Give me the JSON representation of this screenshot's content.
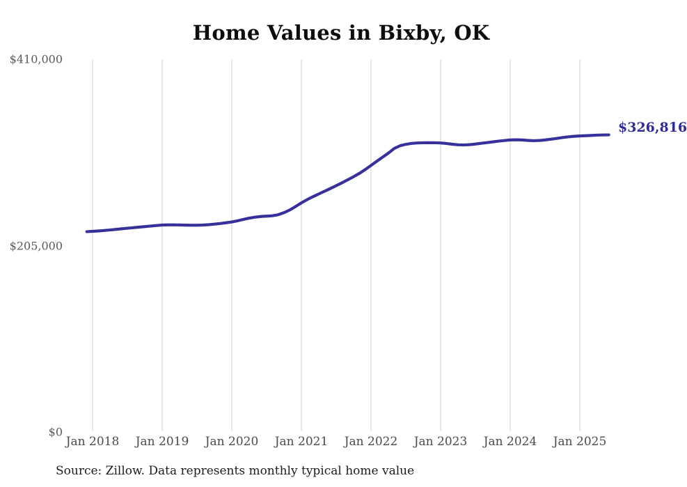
{
  "title": "Home Values in Bixby, OK",
  "source_note": "Source: Zillow. Data represents monthly typical home value",
  "current_value_label": "$326,816",
  "colors": {
    "line": "#38319c",
    "current_value_text": "#312b98",
    "grid": "#cccccc",
    "y_tick_text": "#595959",
    "x_tick_text": "#4a4a4a",
    "title_text": "#0d0d0d",
    "source_text": "#1c1c1c",
    "background": "#ffffff"
  },
  "y_axis": {
    "ticks": [
      {
        "label": "$0",
        "value": 0
      },
      {
        "label": "$205,000",
        "value": 205000
      },
      {
        "label": "$410,000",
        "value": 410000
      }
    ],
    "min": 0,
    "max": 410000
  },
  "x_axis": {
    "ticks": [
      "Jan 2018",
      "Jan 2019",
      "Jan 2020",
      "Jan 2021",
      "Jan 2022",
      "Jan 2023",
      "Jan 2024",
      "Jan 2025"
    ]
  },
  "chart_data": {
    "type": "line",
    "title": "Home Values in Bixby, OK",
    "series_name": "Monthly typical home value",
    "unit": "USD",
    "frequency": "monthly",
    "start_month": "Dec 2017",
    "end_month": "Jun 2025",
    "final_value": 326816,
    "ylim": [
      0,
      410000
    ],
    "y_tick_values": [
      0,
      205000,
      410000
    ],
    "x_tick_labels": [
      "Jan 2018",
      "Jan 2019",
      "Jan 2020",
      "Jan 2021",
      "Jan 2022",
      "Jan 2023",
      "Jan 2024",
      "Jan 2025"
    ],
    "grid": "vertical-only",
    "legend": "none",
    "values": [
      220300,
      220700,
      221100,
      221600,
      222200,
      222800,
      223500,
      224100,
      224700,
      225300,
      225900,
      226500,
      227100,
      227600,
      227800,
      227800,
      227700,
      227500,
      227400,
      227400,
      227600,
      228000,
      228600,
      229300,
      230100,
      231000,
      232300,
      233800,
      235200,
      236300,
      237000,
      237400,
      237800,
      239000,
      241200,
      244200,
      248000,
      252000,
      255600,
      258800,
      261800,
      264800,
      267800,
      270900,
      274100,
      277400,
      280800,
      284400,
      288600,
      293200,
      297800,
      302300,
      306700,
      311800,
      314800,
      316400,
      317400,
      317900,
      318100,
      318200,
      318100,
      317900,
      317300,
      316500,
      315900,
      315700,
      316000,
      316700,
      317500,
      318300,
      319100,
      319900,
      320600,
      321200,
      321400,
      321200,
      320700,
      320400,
      320600,
      321200,
      322000,
      322900,
      323800,
      324600,
      325200,
      325600,
      325900,
      326200,
      326500,
      326700,
      326816
    ]
  }
}
